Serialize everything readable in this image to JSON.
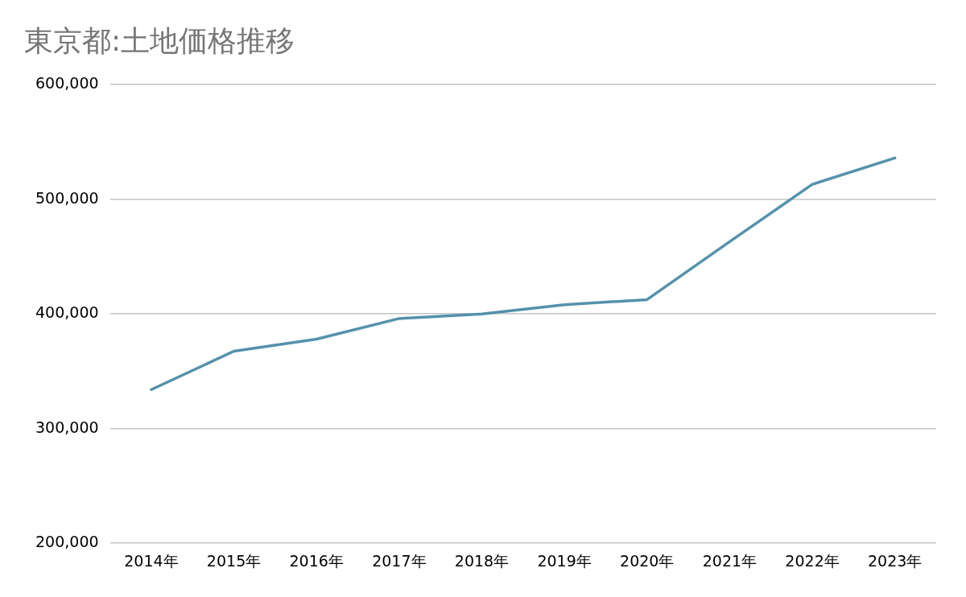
{
  "chart_data": {
    "type": "line",
    "title": "東京都:土地価格推移",
    "categories": [
      "2014年",
      "2015年",
      "2016年",
      "2017年",
      "2018年",
      "2019年",
      "2020年",
      "2021年",
      "2022年",
      "2023年"
    ],
    "series": [
      {
        "color": "#5591ab",
        "values": [
          334000,
          367500,
          378000,
          396000,
          400000,
          408000,
          412500,
          463000,
          513000,
          536000
        ]
      }
    ],
    "ylim": [
      200000,
      600000
    ],
    "yticks": [
      {
        "value": 200000,
        "label": "200,000"
      },
      {
        "value": 300000,
        "label": "300,000"
      },
      {
        "value": 400000,
        "label": "400,000"
      },
      {
        "value": 500000,
        "label": "500,000"
      },
      {
        "value": 600000,
        "label": "600,000"
      }
    ],
    "grid": "y",
    "legend": false,
    "marker": "none",
    "line_style": "solid"
  }
}
